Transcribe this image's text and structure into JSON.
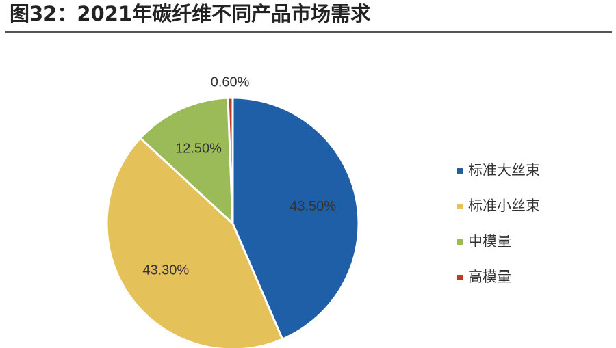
{
  "chart_data": {
    "type": "pie",
    "title": "图32：2021年碳纤维不同产品市场需求",
    "categories": [
      "标准大丝束",
      "标准小丝束",
      "中模量",
      "高模量"
    ],
    "values": [
      43.5,
      43.3,
      12.5,
      0.6
    ],
    "value_labels": [
      "43.50%",
      "43.30%",
      "12.50%",
      "0.60%"
    ],
    "colors": [
      "#1f5fa8",
      "#e5c15a",
      "#9bbb59",
      "#c0392b"
    ],
    "legend": "right"
  }
}
